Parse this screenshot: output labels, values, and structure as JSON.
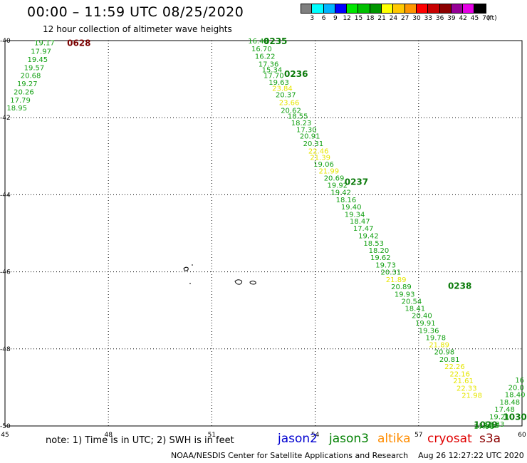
{
  "header": {
    "title": "00:00 – 11:59 UTC 08/25/2020",
    "subtitle": "12 hour collection of altimeter wave heights"
  },
  "legend": {
    "unit": "(ft)",
    "bins": [
      {
        "label": "3",
        "color": "#7f7f7f"
      },
      {
        "label": "6",
        "color": "#00ffff"
      },
      {
        "label": "9",
        "color": "#00b4ff"
      },
      {
        "label": "12",
        "color": "#0000ff"
      },
      {
        "label": "15",
        "color": "#00e600"
      },
      {
        "label": "18",
        "color": "#00c000"
      },
      {
        "label": "21",
        "color": "#009600"
      },
      {
        "label": "24",
        "color": "#ffff00"
      },
      {
        "label": "27",
        "color": "#ffc800"
      },
      {
        "label": "30",
        "color": "#ff9600"
      },
      {
        "label": "33",
        "color": "#ff0000"
      },
      {
        "label": "36",
        "color": "#c80000"
      },
      {
        "label": "39",
        "color": "#8c0000"
      },
      {
        "label": "42",
        "color": "#960096"
      },
      {
        "label": "45",
        "color": "#e600e6"
      },
      {
        "label": "70",
        "color": "#000000"
      }
    ]
  },
  "axes": {
    "x_ticks": [
      "45",
      "48",
      "51",
      "54",
      "57",
      "60"
    ],
    "y_ticks": [
      "-40",
      "-42",
      "-44",
      "-46",
      "-48",
      "-50"
    ],
    "lon_range": [
      45,
      60
    ],
    "lat_range": [
      -50,
      -40
    ]
  },
  "timestamps": [
    {
      "text": "0628",
      "lon": 46.8,
      "lat": -40.05,
      "sat": "cryosat"
    },
    {
      "text": "0235",
      "lon": 52.5,
      "lat": -40.0,
      "sat": "jason3"
    },
    {
      "text": "0236",
      "lon": 53.1,
      "lat": -40.85,
      "sat": "jason3"
    },
    {
      "text": "0237",
      "lon": 54.85,
      "lat": -43.65,
      "sat": "jason3"
    },
    {
      "text": "0238",
      "lon": 57.85,
      "lat": -46.35,
      "sat": "jason3"
    },
    {
      "text": "1030",
      "lon": 59.45,
      "lat": -49.75,
      "sat": "jason3"
    },
    {
      "text": "1029",
      "lon": 58.6,
      "lat": -49.95,
      "sat": "jason3"
    }
  ],
  "tracks": [
    {
      "name": "west",
      "points": [
        {
          "v": "19.17",
          "lon": 45.85,
          "lat": -40.05
        },
        {
          "v": "17.97",
          "lon": 45.75,
          "lat": -40.27
        },
        {
          "v": "19.45",
          "lon": 45.65,
          "lat": -40.48
        },
        {
          "v": "19.57",
          "lon": 45.55,
          "lat": -40.69
        },
        {
          "v": "20.68",
          "lon": 45.45,
          "lat": -40.9
        },
        {
          "v": "19.27",
          "lon": 45.35,
          "lat": -41.11
        },
        {
          "v": "20.26",
          "lon": 45.25,
          "lat": -41.32
        },
        {
          "v": "17.79",
          "lon": 45.15,
          "lat": -41.53
        },
        {
          "v": "18.95",
          "lon": 45.05,
          "lat": -41.74
        }
      ]
    },
    {
      "name": "main",
      "points": [
        {
          "v": "16.49",
          "lon": 52.05,
          "lat": -40.0
        },
        {
          "v": "16.70",
          "lon": 52.15,
          "lat": -40.2
        },
        {
          "v": "16.22",
          "lon": 52.25,
          "lat": -40.4
        },
        {
          "v": "17.36",
          "lon": 52.35,
          "lat": -40.6
        },
        {
          "v": "15.34",
          "lon": 52.45,
          "lat": -40.75
        },
        {
          "v": "17.70",
          "lon": 52.5,
          "lat": -40.9
        },
        {
          "v": "19.63",
          "lon": 52.65,
          "lat": -41.07
        },
        {
          "v": "23.84",
          "lon": 52.75,
          "lat": -41.23
        },
        {
          "v": "20.37",
          "lon": 52.85,
          "lat": -41.4
        },
        {
          "v": "23.66",
          "lon": 52.95,
          "lat": -41.6
        },
        {
          "v": "20.62",
          "lon": 53.0,
          "lat": -41.8
        },
        {
          "v": "18.55",
          "lon": 53.2,
          "lat": -41.95
        },
        {
          "v": "18.23",
          "lon": 53.3,
          "lat": -42.13
        },
        {
          "v": "17.30",
          "lon": 53.45,
          "lat": -42.3
        },
        {
          "v": "20.91",
          "lon": 53.55,
          "lat": -42.47
        },
        {
          "v": "20.31",
          "lon": 53.65,
          "lat": -42.66
        },
        {
          "v": "22.46",
          "lon": 53.8,
          "lat": -42.86
        },
        {
          "v": "21.39",
          "lon": 53.85,
          "lat": -43.02
        },
        {
          "v": "19.06",
          "lon": 53.95,
          "lat": -43.2
        },
        {
          "v": "21.99",
          "lon": 54.1,
          "lat": -43.37
        },
        {
          "v": "20.69",
          "lon": 54.25,
          "lat": -43.56
        },
        {
          "v": "19.92",
          "lon": 54.35,
          "lat": -43.74
        },
        {
          "v": "19.42",
          "lon": 54.45,
          "lat": -43.93
        },
        {
          "v": "18.16",
          "lon": 54.6,
          "lat": -44.12
        },
        {
          "v": "19.40",
          "lon": 54.75,
          "lat": -44.31
        },
        {
          "v": "19.34",
          "lon": 54.85,
          "lat": -44.5
        },
        {
          "v": "18.47",
          "lon": 55.0,
          "lat": -44.68
        },
        {
          "v": "17.47",
          "lon": 55.1,
          "lat": -44.86
        },
        {
          "v": "19.42",
          "lon": 55.25,
          "lat": -45.06
        },
        {
          "v": "18.53",
          "lon": 55.4,
          "lat": -45.25
        },
        {
          "v": "18.20",
          "lon": 55.55,
          "lat": -45.43
        },
        {
          "v": "19.62",
          "lon": 55.6,
          "lat": -45.62
        },
        {
          "v": "19.73",
          "lon": 55.75,
          "lat": -45.81
        },
        {
          "v": "20.31",
          "lon": 55.9,
          "lat": -46.0
        },
        {
          "v": "21.89",
          "lon": 56.05,
          "lat": -46.19
        },
        {
          "v": "20.89",
          "lon": 56.2,
          "lat": -46.38
        },
        {
          "v": "19.93",
          "lon": 56.3,
          "lat": -46.57
        },
        {
          "v": "20.54",
          "lon": 56.5,
          "lat": -46.76
        },
        {
          "v": "18.41",
          "lon": 56.6,
          "lat": -46.94
        },
        {
          "v": "20.40",
          "lon": 56.8,
          "lat": -47.13
        },
        {
          "v": "19.91",
          "lon": 56.9,
          "lat": -47.32
        },
        {
          "v": "19.36",
          "lon": 57.0,
          "lat": -47.51
        },
        {
          "v": "19.78",
          "lon": 57.2,
          "lat": -47.7
        },
        {
          "v": "21.89",
          "lon": 57.3,
          "lat": -47.88
        },
        {
          "v": "20.98",
          "lon": 57.45,
          "lat": -48.07
        },
        {
          "v": "20.81",
          "lon": 57.6,
          "lat": -48.26
        },
        {
          "v": "22.26",
          "lon": 57.75,
          "lat": -48.45
        },
        {
          "v": "22.16",
          "lon": 57.9,
          "lat": -48.64
        },
        {
          "v": "21.61",
          "lon": 58.0,
          "lat": -48.82
        },
        {
          "v": "22.33",
          "lon": 58.1,
          "lat": -49.01
        },
        {
          "v": "21.98",
          "lon": 58.25,
          "lat": -49.2
        }
      ]
    },
    {
      "name": "southeast",
      "points": [
        {
          "v": "16",
          "lon": 59.8,
          "lat": -48.8
        },
        {
          "v": "20.0",
          "lon": 59.6,
          "lat": -48.99
        },
        {
          "v": "18.40",
          "lon": 59.5,
          "lat": -49.18
        },
        {
          "v": "18.48",
          "lon": 59.35,
          "lat": -49.37
        },
        {
          "v": "17.48",
          "lon": 59.2,
          "lat": -49.56
        },
        {
          "v": "19.21",
          "lon": 59.05,
          "lat": -49.75
        },
        {
          "v": "18.33",
          "lon": 58.9,
          "lat": -49.94
        },
        {
          "v": "18.15",
          "lon": 58.75,
          "lat": -49.98
        },
        {
          "v": "17.98",
          "lon": 58.6,
          "lat": -50.0
        }
      ]
    }
  ],
  "footer": {
    "note": "note: 1) Time is in UTC; 2) SWH is in feet",
    "satellites": [
      {
        "name": "jason2",
        "color": "#0000d0"
      },
      {
        "name": "jason3",
        "color": "#008000"
      },
      {
        "name": "altika",
        "color": "#ff8c00"
      },
      {
        "name": "cryosat",
        "color": "#e00000"
      },
      {
        "name": "s3a",
        "color": "#8b0000"
      }
    ],
    "credit": "NOAA/NESDIS Center for Satellite Applications and Research",
    "timestamp": "Aug 26 12:27:22 UTC 2020"
  },
  "colors": {
    "jason3_normal": "#12a012",
    "jason3_high": "#e6e600"
  }
}
